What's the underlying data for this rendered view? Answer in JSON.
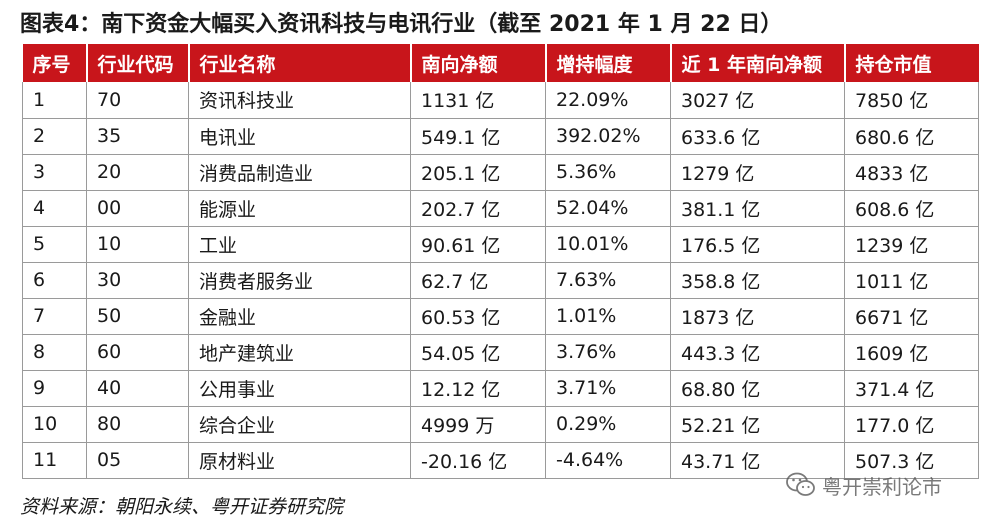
{
  "title": "图表4：南下资金大幅买入资讯科技与电讯行业（截至 2021 年 1 月 22 日）",
  "table": {
    "headers": [
      "序号",
      "行业代码",
      "行业名称",
      "南向净额",
      "增持幅度",
      "近 1 年南向净额",
      "持仓市值"
    ],
    "rows": [
      [
        "1",
        "70",
        "资讯科技业",
        "1131 亿",
        "22.09%",
        "3027 亿",
        "7850 亿"
      ],
      [
        "2",
        "35",
        "电讯业",
        "549.1 亿",
        "392.02%",
        "633.6 亿",
        "680.6 亿"
      ],
      [
        "3",
        "20",
        "消费品制造业",
        "205.1 亿",
        "5.36%",
        "1279 亿",
        "4833 亿"
      ],
      [
        "4",
        "00",
        "能源业",
        "202.7 亿",
        "52.04%",
        "381.1 亿",
        "608.6 亿"
      ],
      [
        "5",
        "10",
        "工业",
        "90.61 亿",
        "10.01%",
        "176.5 亿",
        "1239 亿"
      ],
      [
        "6",
        "30",
        "消费者服务业",
        "62.7 亿",
        "7.63%",
        "358.8 亿",
        "1011 亿"
      ],
      [
        "7",
        "50",
        "金融业",
        "60.53 亿",
        "1.01%",
        "1873 亿",
        "6671 亿"
      ],
      [
        "8",
        "60",
        "地产建筑业",
        "54.05 亿",
        "3.76%",
        "443.3 亿",
        "1609 亿"
      ],
      [
        "9",
        "40",
        "公用事业",
        "12.12 亿",
        "3.71%",
        "68.80 亿",
        "371.4 亿"
      ],
      [
        "10",
        "80",
        "综合企业",
        "4999 万",
        "0.29%",
        "52.21 亿",
        "177.0 亿"
      ],
      [
        "11",
        "05",
        "原材料业",
        "-20.16 亿",
        "-4.64%",
        "43.71 亿",
        "507.3 亿"
      ]
    ]
  },
  "source": "资料来源：朝阳永续、粤开证券研究院",
  "watermark": {
    "icon": "wechat-icon",
    "text": "粤开崇利论市"
  },
  "colors": {
    "header_bg": "#c8151b",
    "header_text": "#ffffff",
    "grid_line": "#9a9a9a"
  }
}
